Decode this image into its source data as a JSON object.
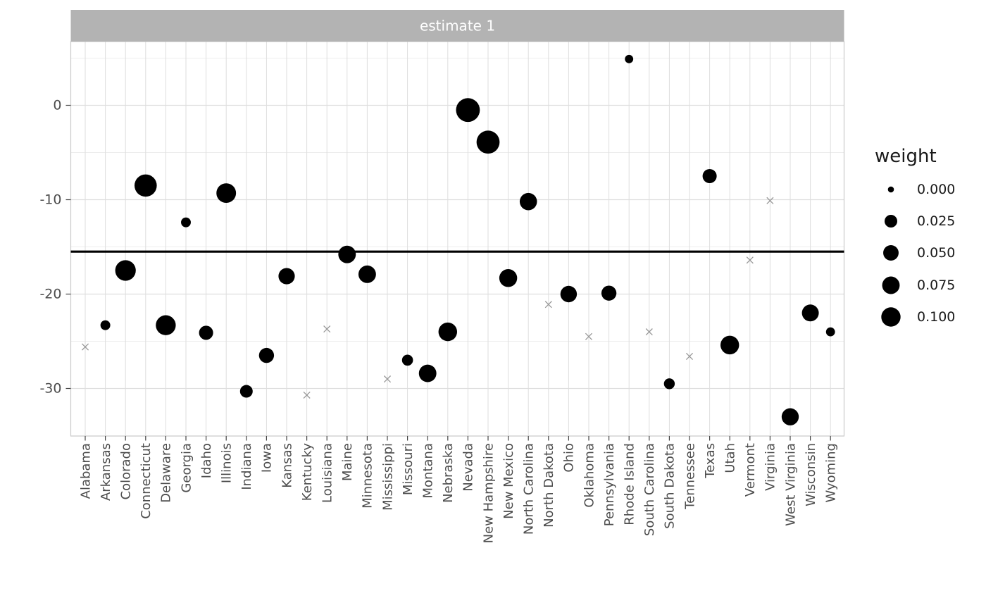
{
  "figure": {
    "background": "#ffffff",
    "strip_bg": "#b3b3b3",
    "strip_text_color": "#ffffff",
    "panel_border_color": "#c9c9c9",
    "grid_major_color": "#dedede",
    "grid_minor_color": "#ededed",
    "axis_text_color": "#4d4d4d",
    "tick_color": "#454545",
    "point_color": "#000000",
    "cross_color": "#999999",
    "hline_color": "#000000",
    "legend_text_color": "#1a1a1a"
  },
  "chart_data": {
    "type": "scatter",
    "facet_label": "estimate 1",
    "xlabel": "",
    "ylabel": "",
    "ylim": [
      -34.8,
      6.8
    ],
    "y_ticks": [
      0,
      -10,
      -20,
      -30
    ],
    "y_tick_labels": [
      "0",
      "-10",
      "-20",
      "-30"
    ],
    "y_minor_ticks": [
      5,
      -5,
      -15,
      -25
    ],
    "grid": true,
    "reference_line_y": -15.5,
    "legend": {
      "title": "weight",
      "position": "right",
      "breaks": [
        "0.000",
        "0.025",
        "0.050",
        "0.075",
        "0.100"
      ],
      "break_values": [
        0,
        0.025,
        0.05,
        0.075,
        0.1
      ]
    },
    "series": [
      {
        "state": "Alabama",
        "estimate": -25.6,
        "weight": 0.0,
        "marker": "cross"
      },
      {
        "state": "Arkansas",
        "estimate": -23.3,
        "weight": 0.008,
        "marker": "circle"
      },
      {
        "state": "Colorado",
        "estimate": -17.5,
        "weight": 0.12,
        "marker": "circle"
      },
      {
        "state": "Connecticut",
        "estimate": -8.5,
        "weight": 0.15,
        "marker": "circle"
      },
      {
        "state": "Delaware",
        "estimate": -23.3,
        "weight": 0.11,
        "marker": "circle"
      },
      {
        "state": "Georgia",
        "estimate": -12.4,
        "weight": 0.008,
        "marker": "circle"
      },
      {
        "state": "Idaho",
        "estimate": -24.1,
        "weight": 0.037,
        "marker": "circle"
      },
      {
        "state": "Illinois",
        "estimate": -9.3,
        "weight": 0.105,
        "marker": "circle"
      },
      {
        "state": "Indiana",
        "estimate": -30.3,
        "weight": 0.025,
        "marker": "circle"
      },
      {
        "state": "Iowa",
        "estimate": -26.5,
        "weight": 0.046,
        "marker": "circle"
      },
      {
        "state": "Kansas",
        "estimate": -18.1,
        "weight": 0.06,
        "marker": "circle"
      },
      {
        "state": "Kentucky",
        "estimate": -30.7,
        "weight": 0.0,
        "marker": "cross"
      },
      {
        "state": "Louisiana",
        "estimate": -23.7,
        "weight": 0.0,
        "marker": "cross"
      },
      {
        "state": "Maine",
        "estimate": -15.8,
        "weight": 0.075,
        "marker": "circle"
      },
      {
        "state": "Minnesota",
        "estimate": -17.9,
        "weight": 0.075,
        "marker": "circle"
      },
      {
        "state": "Mississippi",
        "estimate": -29.0,
        "weight": 0.0,
        "marker": "cross"
      },
      {
        "state": "Missouri",
        "estimate": -27.0,
        "weight": 0.014,
        "marker": "circle"
      },
      {
        "state": "Montana",
        "estimate": -28.4,
        "weight": 0.075,
        "marker": "circle"
      },
      {
        "state": "Nebraska",
        "estimate": -24.0,
        "weight": 0.09,
        "marker": "circle"
      },
      {
        "state": "Nevada",
        "estimate": -0.5,
        "weight": 0.18,
        "marker": "circle"
      },
      {
        "state": "New Hampshire",
        "estimate": -3.9,
        "weight": 0.165,
        "marker": "circle"
      },
      {
        "state": "New Mexico",
        "estimate": -18.3,
        "weight": 0.08,
        "marker": "circle"
      },
      {
        "state": "North Carolina",
        "estimate": -10.2,
        "weight": 0.072,
        "marker": "circle"
      },
      {
        "state": "North Dakota",
        "estimate": -21.1,
        "weight": 0.0,
        "marker": "cross"
      },
      {
        "state": "Ohio",
        "estimate": -20.0,
        "weight": 0.062,
        "marker": "circle"
      },
      {
        "state": "Oklahoma",
        "estimate": -24.5,
        "weight": 0.0,
        "marker": "cross"
      },
      {
        "state": "Pennsylvania",
        "estimate": -19.9,
        "weight": 0.046,
        "marker": "circle"
      },
      {
        "state": "Rhode Island",
        "estimate": 4.9,
        "weight": 0.003,
        "marker": "circle"
      },
      {
        "state": "South Carolina",
        "estimate": -24.0,
        "weight": 0.0,
        "marker": "cross"
      },
      {
        "state": "South Dakota",
        "estimate": -29.5,
        "weight": 0.013,
        "marker": "circle"
      },
      {
        "state": "Tennessee",
        "estimate": -26.6,
        "weight": 0.0,
        "marker": "cross"
      },
      {
        "state": "Texas",
        "estimate": -7.5,
        "weight": 0.037,
        "marker": "circle"
      },
      {
        "state": "Utah",
        "estimate": -25.4,
        "weight": 0.09,
        "marker": "circle"
      },
      {
        "state": "Vermont",
        "estimate": -16.4,
        "weight": 0.0,
        "marker": "cross"
      },
      {
        "state": "Virginia",
        "estimate": -10.1,
        "weight": 0.0,
        "marker": "cross"
      },
      {
        "state": "West Virginia",
        "estimate": -33.0,
        "weight": 0.07,
        "marker": "circle"
      },
      {
        "state": "Wisconsin",
        "estimate": -22.0,
        "weight": 0.067,
        "marker": "circle"
      },
      {
        "state": "Wyoming",
        "estimate": -24.0,
        "weight": 0.005,
        "marker": "circle"
      }
    ]
  }
}
